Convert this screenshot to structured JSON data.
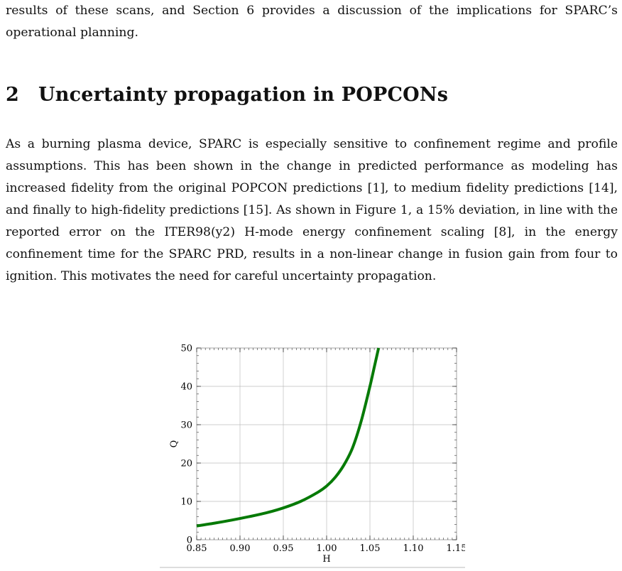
{
  "intro_tail": "results of these scans, and Section 6 provides a discussion of the implications for SPARC’s operational planning.",
  "section": {
    "number": "2",
    "title": "Uncertainty propagation in POPCONs"
  },
  "body_paragraph": "As a burning plasma device, SPARC is especially sensitive to confinement regime and profile assumptions. This has been shown in the change in predicted performance as modeling has increased fidelity from the original POPCON predictions [1], to medium fidelity predictions [14], and finally to high-fidelity predictions [15]. As shown in Figure 1, a 15% deviation, in line with the reported error on the ITER98(y2) H-mode energy confinement scaling [8], in the energy confinement time for the SPARC PRD, results in a non-linear change in fusion gain from four to ignition. This motivates the need for careful uncertainty propagation.",
  "figure": {
    "line_color": "#067a06"
  },
  "chart_data": {
    "type": "line",
    "title": "",
    "xlabel": "H",
    "ylabel": "Q",
    "xlim": [
      0.85,
      1.15
    ],
    "ylim": [
      0,
      50
    ],
    "xticks": [
      "0.85",
      "0.90",
      "0.95",
      "1.00",
      "1.05",
      "1.10",
      "1.15"
    ],
    "yticks": [
      "0",
      "10",
      "20",
      "30",
      "40",
      "50"
    ],
    "grid": true,
    "series": [
      {
        "x": [
          0.85,
          0.87,
          0.89,
          0.91,
          0.93,
          0.95,
          0.97,
          0.99,
          1.0,
          1.01,
          1.02,
          1.03,
          1.04,
          1.05,
          1.055,
          1.06
        ],
        "y": [
          3.6,
          4.3,
          5.1,
          6.0,
          7.0,
          8.3,
          10.0,
          12.4,
          14.0,
          16.3,
          19.5,
          24.0,
          31.0,
          40.0,
          45.0,
          50.0
        ]
      }
    ]
  }
}
